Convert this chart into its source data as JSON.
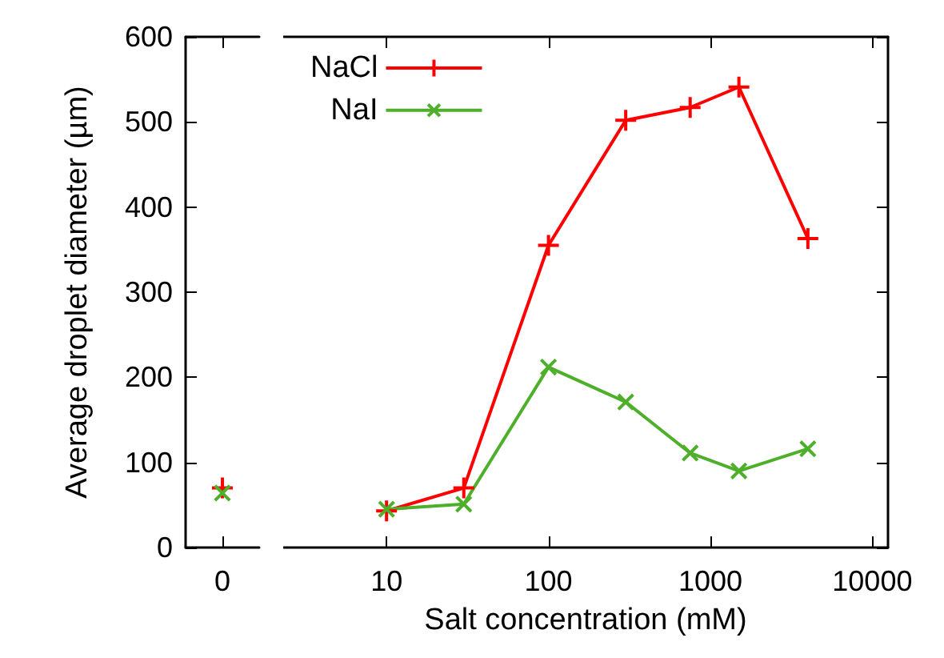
{
  "chart_data": [
    {
      "type": "line",
      "ylabel": "Average droplet diameter (µm)",
      "categories": [
        "0"
      ],
      "ylim": [
        0,
        600
      ],
      "yticks": [
        0,
        100,
        200,
        300,
        400,
        500,
        600
      ],
      "grid": false,
      "series": [
        {
          "color": "#ff0000",
          "marker": "cross",
          "values": [
            70
          ]
        },
        {
          "color": "#4daf2a",
          "marker": "cross",
          "values": [
            64
          ]
        }
      ]
    },
    {
      "type": "line",
      "xlabel": "Salt concentration (mM)",
      "log": "x",
      "x": [
        10,
        30,
        100,
        300,
        750,
        1500,
        4000
      ],
      "xlim": [
        2.3,
        12500
      ],
      "xticks": [
        10,
        100,
        1000,
        10000
      ],
      "ylim": [
        0,
        600
      ],
      "yticks": [
        0,
        100,
        200,
        300,
        400,
        500,
        600
      ],
      "tick_labels": "x",
      "grid": false,
      "legend": "top left",
      "series": [
        {
          "name": "NaCl",
          "color": "#ff0000",
          "marker": "cross",
          "values": [
            43,
            70,
            355,
            502,
            517,
            541,
            363
          ]
        },
        {
          "name": "NaI",
          "color": "#4daf2a",
          "marker": "cross",
          "values": [
            45,
            51,
            212,
            171,
            111,
            90,
            116
          ]
        }
      ]
    }
  ]
}
